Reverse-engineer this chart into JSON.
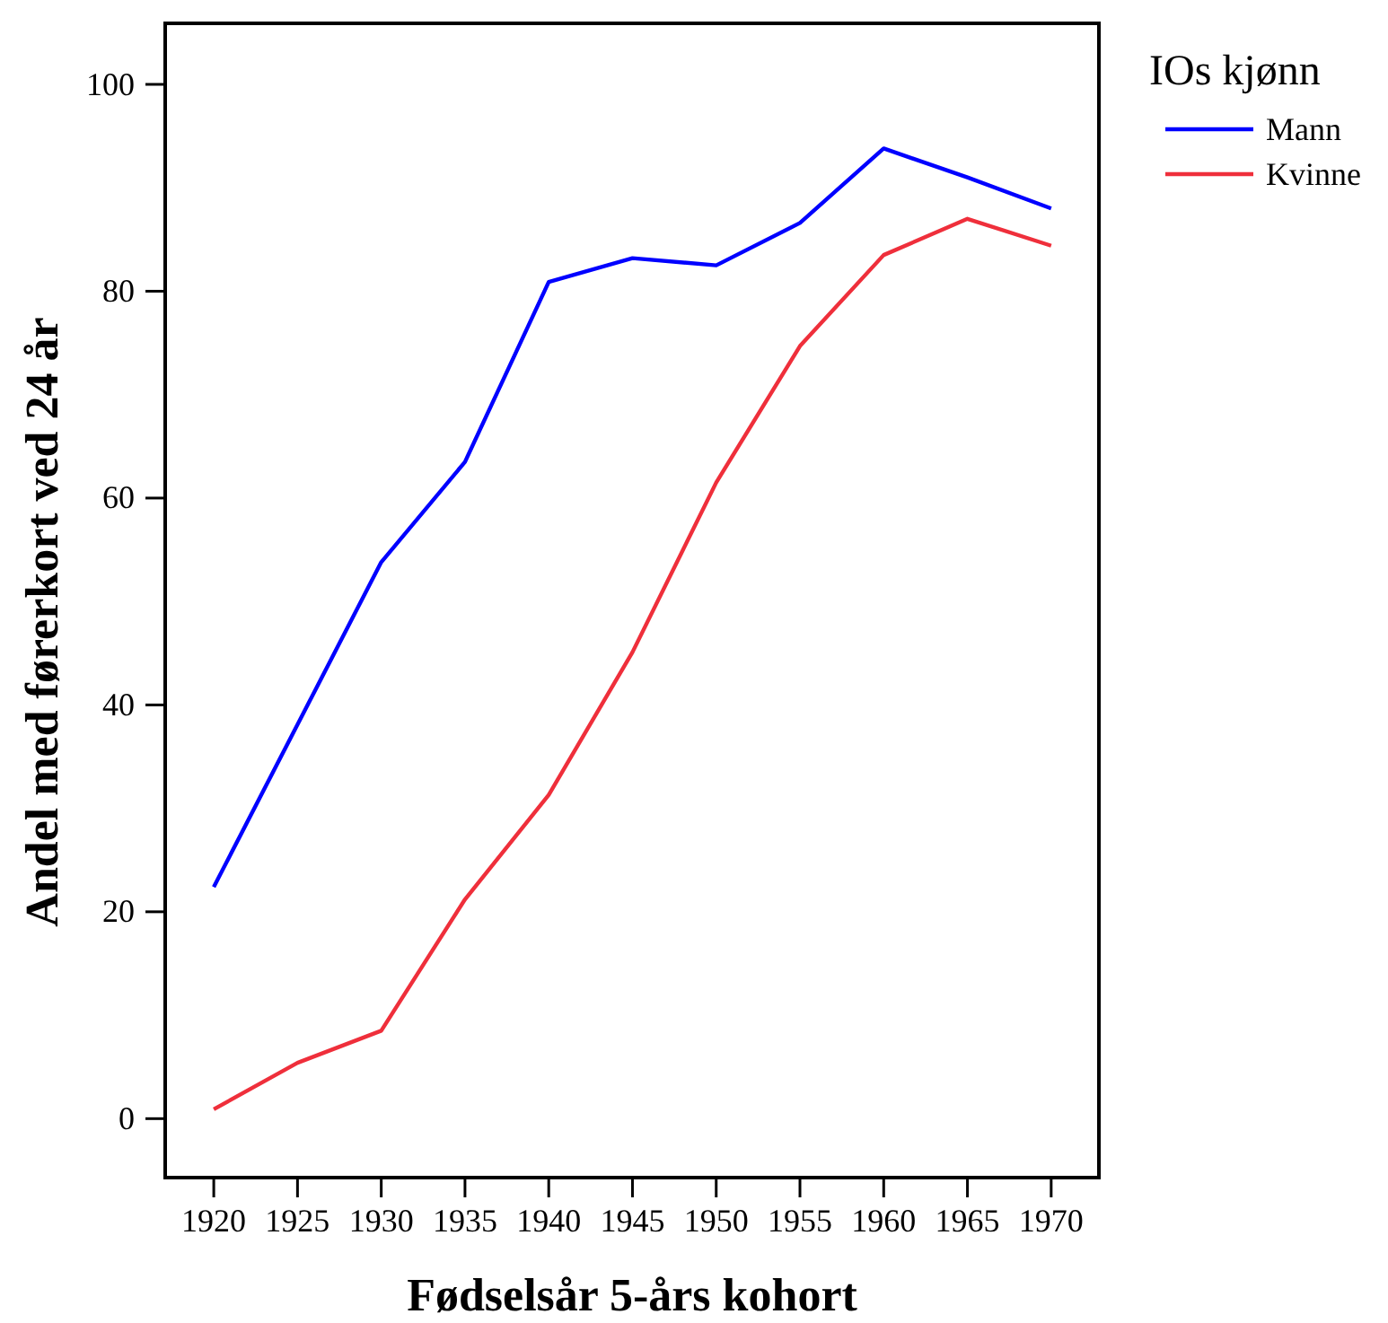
{
  "chart_data": {
    "type": "line",
    "xlabel": "Fødselsår 5-års kohort",
    "ylabel": "Andel med førerkort ved 24 år",
    "legend_title": "IOs kjønn",
    "legend": "top right",
    "categories": [
      "1920",
      "1925",
      "1930",
      "1935",
      "1940",
      "1945",
      "1950",
      "1955",
      "1960",
      "1965",
      "1970"
    ],
    "series": [
      {
        "name": "Mann",
        "color": "#0000ff",
        "values": [
          22.4,
          38.1,
          53.8,
          63.5,
          80.9,
          83.2,
          82.5,
          86.6,
          93.8,
          91.0,
          88.0
        ]
      },
      {
        "name": "Kvinne",
        "color": "#ef2f3b",
        "values": [
          0.9,
          5.4,
          8.5,
          21.2,
          31.3,
          45.1,
          61.5,
          74.7,
          83.5,
          87.0,
          84.4
        ]
      }
    ],
    "ylim": [
      -5.7,
      105.9
    ],
    "yticks": [
      0,
      20,
      40,
      60,
      80,
      100
    ],
    "grid": false
  }
}
